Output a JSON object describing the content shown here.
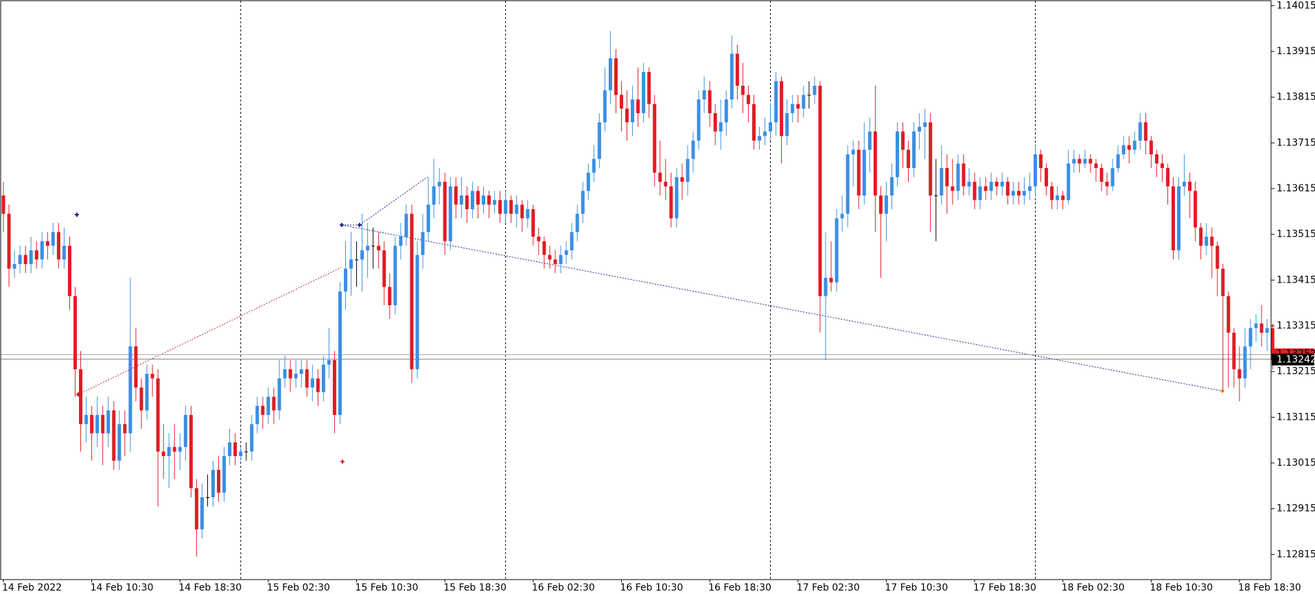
{
  "chart_data": {
    "type": "candlestick",
    "up_color": "#3a8fe3",
    "down_color": "#df1c24",
    "doji_color": "#000000",
    "ylim": [
      1.1276,
      1.14026
    ],
    "yticks": [
      1.14015,
      1.13915,
      1.13815,
      1.13715,
      1.13615,
      1.13515,
      1.13415,
      1.13315,
      1.13215,
      1.13115,
      1.13015,
      1.12915,
      1.12815
    ],
    "x_labels": [
      "14 Feb 2022",
      "14 Feb 10:30",
      "14 Feb 18:30",
      "15 Feb 02:30",
      "15 Feb 10:30",
      "15 Feb 18:30",
      "16 Feb 02:30",
      "16 Feb 10:30",
      "16 Feb 18:30",
      "17 Feb 02:30",
      "17 Feb 10:30",
      "17 Feb 18:30",
      "18 Feb 02:30",
      "18 Feb 10:30",
      "18 Feb 18:30"
    ],
    "bid": 1.13242,
    "ask": 1.13252,
    "candles": [
      [
        1.136,
        1.1363,
        1.1352,
        1.1356
      ],
      [
        1.1356,
        1.1358,
        1.134,
        1.1344
      ],
      [
        1.1344,
        1.1348,
        1.1342,
        1.1345
      ],
      [
        1.1345,
        1.1349,
        1.1343,
        1.1347
      ],
      [
        1.1347,
        1.1349,
        1.1343,
        1.1345
      ],
      [
        1.1345,
        1.1351,
        1.1343,
        1.1348
      ],
      [
        1.1348,
        1.135,
        1.1344,
        1.1346
      ],
      [
        1.1346,
        1.1352,
        1.1344,
        1.135
      ],
      [
        1.135,
        1.1352,
        1.1346,
        1.1349
      ],
      [
        1.1349,
        1.1354,
        1.1347,
        1.1352
      ],
      [
        1.1352,
        1.1354,
        1.1344,
        1.1346
      ],
      [
        1.1346,
        1.1353,
        1.1344,
        1.1349
      ],
      [
        1.1349,
        1.1351,
        1.1335,
        1.1338
      ],
      [
        1.1338,
        1.134,
        1.1316,
        1.1322
      ],
      [
        1.1322,
        1.1326,
        1.1304,
        1.131
      ],
      [
        1.131,
        1.1316,
        1.1306,
        1.1312
      ],
      [
        1.1312,
        1.1314,
        1.1302,
        1.1308
      ],
      [
        1.1308,
        1.1316,
        1.1305,
        1.1312
      ],
      [
        1.1312,
        1.1314,
        1.1301,
        1.1308
      ],
      [
        1.1308,
        1.1316,
        1.1305,
        1.1313
      ],
      [
        1.1313,
        1.1315,
        1.13,
        1.1302
      ],
      [
        1.1302,
        1.1313,
        1.13,
        1.131
      ],
      [
        1.131,
        1.1313,
        1.1303,
        1.1308
      ],
      [
        1.1308,
        1.1342,
        1.1304,
        1.1327
      ],
      [
        1.1327,
        1.1331,
        1.1315,
        1.1318
      ],
      [
        1.1318,
        1.132,
        1.1309,
        1.1313
      ],
      [
        1.1313,
        1.1323,
        1.1311,
        1.1321
      ],
      [
        1.1321,
        1.1323,
        1.1316,
        1.132
      ],
      [
        1.132,
        1.1322,
        1.1292,
        1.1304
      ],
      [
        1.1304,
        1.131,
        1.1298,
        1.1303
      ],
      [
        1.1303,
        1.1308,
        1.1296,
        1.1305
      ],
      [
        1.1305,
        1.131,
        1.1298,
        1.1304
      ],
      [
        1.1304,
        1.1308,
        1.13,
        1.1305
      ],
      [
        1.1305,
        1.1314,
        1.1302,
        1.1312
      ],
      [
        1.1312,
        1.1314,
        1.1294,
        1.1296
      ],
      [
        1.1296,
        1.1298,
        1.1281,
        1.1287
      ],
      [
        1.1287,
        1.1297,
        1.1285,
        1.1294
      ],
      [
        1.1294,
        1.1299,
        1.1292,
        1.1294
      ],
      [
        1.1294,
        1.1302,
        1.1292,
        1.13
      ],
      [
        1.13,
        1.1303,
        1.1293,
        1.1295
      ],
      [
        1.1295,
        1.1305,
        1.1293,
        1.1303
      ],
      [
        1.1303,
        1.1309,
        1.1301,
        1.1306
      ],
      [
        1.1306,
        1.1308,
        1.1301,
        1.1303
      ],
      [
        1.1303,
        1.1305,
        1.1302,
        1.1304
      ],
      [
        1.1304,
        1.1306,
        1.1302,
        1.1304
      ],
      [
        1.1304,
        1.1312,
        1.1302,
        1.131
      ],
      [
        1.131,
        1.1316,
        1.1308,
        1.1314
      ],
      [
        1.1314,
        1.1316,
        1.1309,
        1.1312
      ],
      [
        1.1312,
        1.1318,
        1.131,
        1.1316
      ],
      [
        1.1316,
        1.1318,
        1.131,
        1.1313
      ],
      [
        1.1313,
        1.1324,
        1.1311,
        1.132
      ],
      [
        1.132,
        1.1325,
        1.1318,
        1.1322
      ],
      [
        1.1322,
        1.1324,
        1.1317,
        1.132
      ],
      [
        1.132,
        1.1324,
        1.1318,
        1.1321
      ],
      [
        1.1321,
        1.1324,
        1.1318,
        1.1322
      ],
      [
        1.1322,
        1.1324,
        1.1316,
        1.1318
      ],
      [
        1.1318,
        1.1323,
        1.1315,
        1.132
      ],
      [
        1.132,
        1.1322,
        1.1314,
        1.1317
      ],
      [
        1.1317,
        1.1325,
        1.1315,
        1.1323
      ],
      [
        1.1323,
        1.1331,
        1.132,
        1.1324
      ],
      [
        1.1324,
        1.1326,
        1.1308,
        1.1312
      ],
      [
        1.1312,
        1.1341,
        1.131,
        1.1339
      ],
      [
        1.1339,
        1.135,
        1.1335,
        1.1344
      ],
      [
        1.1344,
        1.1352,
        1.1338,
        1.1346
      ],
      [
        1.1346,
        1.135,
        1.134,
        1.1346
      ],
      [
        1.1346,
        1.1356,
        1.1339,
        1.1348
      ],
      [
        1.1348,
        1.1354,
        1.1342,
        1.1349
      ],
      [
        1.1349,
        1.1353,
        1.1344,
        1.1349
      ],
      [
        1.1349,
        1.1352,
        1.1344,
        1.1348
      ],
      [
        1.1348,
        1.135,
        1.1336,
        1.134
      ],
      [
        1.134,
        1.1343,
        1.1333,
        1.1336
      ],
      [
        1.1336,
        1.1351,
        1.1334,
        1.1349
      ],
      [
        1.1349,
        1.1354,
        1.1346,
        1.1351
      ],
      [
        1.1351,
        1.1358,
        1.1349,
        1.1356
      ],
      [
        1.1356,
        1.1358,
        1.1319,
        1.1322
      ],
      [
        1.1322,
        1.135,
        1.132,
        1.1347
      ],
      [
        1.1347,
        1.1356,
        1.1344,
        1.1352
      ],
      [
        1.1352,
        1.1364,
        1.135,
        1.1358
      ],
      [
        1.1358,
        1.1368,
        1.1355,
        1.1362
      ],
      [
        1.1362,
        1.1366,
        1.1358,
        1.1363
      ],
      [
        1.1363,
        1.1365,
        1.1347,
        1.135
      ],
      [
        1.135,
        1.1364,
        1.1348,
        1.1362
      ],
      [
        1.1362,
        1.1364,
        1.1355,
        1.1358
      ],
      [
        1.1358,
        1.1364,
        1.1355,
        1.136
      ],
      [
        1.136,
        1.1362,
        1.1354,
        1.1357
      ],
      [
        1.1357,
        1.1363,
        1.1355,
        1.1361
      ],
      [
        1.1361,
        1.1362,
        1.1355,
        1.1358
      ],
      [
        1.1358,
        1.1362,
        1.1356,
        1.136
      ],
      [
        1.136,
        1.1361,
        1.1355,
        1.1358
      ],
      [
        1.1358,
        1.1361,
        1.1356,
        1.1359
      ],
      [
        1.1359,
        1.1361,
        1.1354,
        1.1356
      ],
      [
        1.1356,
        1.1361,
        1.1354,
        1.1359
      ],
      [
        1.1359,
        1.136,
        1.1354,
        1.1356
      ],
      [
        1.1356,
        1.136,
        1.1353,
        1.1358
      ],
      [
        1.1358,
        1.1359,
        1.1352,
        1.1355
      ],
      [
        1.1355,
        1.1359,
        1.1353,
        1.1357
      ],
      [
        1.1357,
        1.1358,
        1.1349,
        1.1351
      ],
      [
        1.1351,
        1.1353,
        1.1347,
        1.135
      ],
      [
        1.135,
        1.1351,
        1.1344,
        1.1347
      ],
      [
        1.1347,
        1.1349,
        1.1344,
        1.1346
      ],
      [
        1.1346,
        1.1348,
        1.1343,
        1.1345
      ],
      [
        1.1345,
        1.1349,
        1.1343,
        1.1347
      ],
      [
        1.1347,
        1.135,
        1.1345,
        1.1348
      ],
      [
        1.1348,
        1.1354,
        1.1346,
        1.1352
      ],
      [
        1.1352,
        1.1358,
        1.135,
        1.1356
      ],
      [
        1.1356,
        1.1363,
        1.1354,
        1.1361
      ],
      [
        1.1361,
        1.1367,
        1.1359,
        1.1365
      ],
      [
        1.1365,
        1.1371,
        1.1363,
        1.1368
      ],
      [
        1.1368,
        1.1378,
        1.1366,
        1.1376
      ],
      [
        1.1376,
        1.1388,
        1.1374,
        1.1383
      ],
      [
        1.1383,
        1.1396,
        1.138,
        1.139
      ],
      [
        1.139,
        1.1392,
        1.1378,
        1.1382
      ],
      [
        1.1382,
        1.1385,
        1.1374,
        1.1379
      ],
      [
        1.1379,
        1.1383,
        1.1372,
        1.1376
      ],
      [
        1.1376,
        1.1384,
        1.1373,
        1.1381
      ],
      [
        1.1381,
        1.1388,
        1.1375,
        1.1378
      ],
      [
        1.1378,
        1.1389,
        1.1376,
        1.1387
      ],
      [
        1.1387,
        1.1388,
        1.1377,
        1.138
      ],
      [
        1.138,
        1.1382,
        1.1362,
        1.1365
      ],
      [
        1.1365,
        1.1372,
        1.136,
        1.1363
      ],
      [
        1.1363,
        1.1368,
        1.1359,
        1.1362
      ],
      [
        1.1362,
        1.1365,
        1.1353,
        1.1355
      ],
      [
        1.1355,
        1.1366,
        1.1353,
        1.1364
      ],
      [
        1.1364,
        1.1367,
        1.1359,
        1.1363
      ],
      [
        1.1363,
        1.1371,
        1.136,
        1.1368
      ],
      [
        1.1368,
        1.1374,
        1.1365,
        1.1372
      ],
      [
        1.1372,
        1.1383,
        1.137,
        1.1381
      ],
      [
        1.1381,
        1.1386,
        1.1378,
        1.1383
      ],
      [
        1.1383,
        1.1385,
        1.1375,
        1.1378
      ],
      [
        1.1378,
        1.138,
        1.1371,
        1.1374
      ],
      [
        1.1374,
        1.1381,
        1.137,
        1.1376
      ],
      [
        1.1376,
        1.1383,
        1.1373,
        1.1381
      ],
      [
        1.1381,
        1.1395,
        1.1379,
        1.1391
      ],
      [
        1.1391,
        1.1393,
        1.1381,
        1.1384
      ],
      [
        1.1384,
        1.1389,
        1.1378,
        1.1382
      ],
      [
        1.1382,
        1.1384,
        1.1376,
        1.138
      ],
      [
        1.138,
        1.1382,
        1.137,
        1.1372
      ],
      [
        1.1372,
        1.1375,
        1.137,
        1.1373
      ],
      [
        1.1373,
        1.1377,
        1.1371,
        1.1374
      ],
      [
        1.1374,
        1.138,
        1.1372,
        1.1376
      ],
      [
        1.1376,
        1.1387,
        1.1373,
        1.1385
      ],
      [
        1.1385,
        1.1386,
        1.1367,
        1.1373
      ],
      [
        1.1373,
        1.1381,
        1.1371,
        1.1378
      ],
      [
        1.1378,
        1.1382,
        1.1376,
        1.138
      ],
      [
        1.138,
        1.1382,
        1.1376,
        1.1379
      ],
      [
        1.1379,
        1.1384,
        1.1377,
        1.1382
      ],
      [
        1.1382,
        1.1385,
        1.1379,
        1.1382
      ],
      [
        1.1382,
        1.1386,
        1.138,
        1.1384
      ],
      [
        1.1384,
        1.1385,
        1.133,
        1.1338
      ],
      [
        1.1338,
        1.1352,
        1.1324,
        1.1342
      ],
      [
        1.1342,
        1.135,
        1.1339,
        1.1341
      ],
      [
        1.1341,
        1.1357,
        1.1339,
        1.1355
      ],
      [
        1.1355,
        1.136,
        1.1352,
        1.1356
      ],
      [
        1.1356,
        1.1371,
        1.1353,
        1.1369
      ],
      [
        1.1369,
        1.1372,
        1.1362,
        1.137
      ],
      [
        1.137,
        1.1372,
        1.1357,
        1.136
      ],
      [
        1.136,
        1.1376,
        1.1358,
        1.137
      ],
      [
        1.137,
        1.1377,
        1.1365,
        1.1374
      ],
      [
        1.1374,
        1.1384,
        1.1352,
        1.136
      ],
      [
        1.136,
        1.1362,
        1.1342,
        1.1356
      ],
      [
        1.1356,
        1.1363,
        1.135,
        1.136
      ],
      [
        1.136,
        1.1367,
        1.1357,
        1.1364
      ],
      [
        1.1364,
        1.1376,
        1.1362,
        1.1374
      ],
      [
        1.1374,
        1.1376,
        1.1366,
        1.137
      ],
      [
        1.137,
        1.1372,
        1.1363,
        1.1366
      ],
      [
        1.1366,
        1.1376,
        1.1364,
        1.1374
      ],
      [
        1.1374,
        1.1378,
        1.137,
        1.1375
      ],
      [
        1.1375,
        1.1379,
        1.1368,
        1.1376
      ],
      [
        1.1376,
        1.1378,
        1.1352,
        1.136
      ],
      [
        1.136,
        1.1368,
        1.135,
        1.136
      ],
      [
        1.136,
        1.1371,
        1.1358,
        1.1366
      ],
      [
        1.1366,
        1.1369,
        1.1356,
        1.1362
      ],
      [
        1.1362,
        1.1368,
        1.1358,
        1.1361
      ],
      [
        1.1361,
        1.1369,
        1.1359,
        1.1367
      ],
      [
        1.1367,
        1.1369,
        1.136,
        1.1362
      ],
      [
        1.1362,
        1.1366,
        1.136,
        1.1363
      ],
      [
        1.1363,
        1.1365,
        1.1357,
        1.1359
      ],
      [
        1.1359,
        1.1364,
        1.1357,
        1.1362
      ],
      [
        1.1362,
        1.1364,
        1.1359,
        1.1361
      ],
      [
        1.1361,
        1.1365,
        1.1359,
        1.1363
      ],
      [
        1.1363,
        1.1364,
        1.136,
        1.1362
      ],
      [
        1.1362,
        1.1365,
        1.136,
        1.1363
      ],
      [
        1.1363,
        1.1364,
        1.1358,
        1.136
      ],
      [
        1.136,
        1.1363,
        1.1358,
        1.1361
      ],
      [
        1.1361,
        1.1363,
        1.1358,
        1.136
      ],
      [
        1.136,
        1.1364,
        1.1358,
        1.1361
      ],
      [
        1.1361,
        1.1365,
        1.1359,
        1.1362
      ],
      [
        1.1362,
        1.1371,
        1.136,
        1.1369
      ],
      [
        1.1369,
        1.137,
        1.1363,
        1.1366
      ],
      [
        1.1366,
        1.1367,
        1.136,
        1.1362
      ],
      [
        1.1362,
        1.1363,
        1.1357,
        1.1359
      ],
      [
        1.1359,
        1.1362,
        1.1357,
        1.136
      ],
      [
        1.136,
        1.1361,
        1.1357,
        1.1359
      ],
      [
        1.1359,
        1.137,
        1.1358,
        1.1367
      ],
      [
        1.1367,
        1.137,
        1.1365,
        1.1368
      ],
      [
        1.1368,
        1.1369,
        1.1365,
        1.1367
      ],
      [
        1.1367,
        1.137,
        1.1366,
        1.1368
      ],
      [
        1.1368,
        1.1369,
        1.1365,
        1.1367
      ],
      [
        1.1367,
        1.1368,
        1.1363,
        1.1366
      ],
      [
        1.1366,
        1.1367,
        1.1361,
        1.1363
      ],
      [
        1.1363,
        1.1365,
        1.136,
        1.1362
      ],
      [
        1.1362,
        1.1368,
        1.1361,
        1.1366
      ],
      [
        1.1366,
        1.1371,
        1.1365,
        1.1369
      ],
      [
        1.1369,
        1.1373,
        1.1368,
        1.1371
      ],
      [
        1.1371,
        1.1373,
        1.1367,
        1.137
      ],
      [
        1.137,
        1.1374,
        1.1369,
        1.1372
      ],
      [
        1.1372,
        1.1378,
        1.137,
        1.1376
      ],
      [
        1.1376,
        1.1378,
        1.1369,
        1.1372
      ],
      [
        1.1372,
        1.1373,
        1.1366,
        1.1369
      ],
      [
        1.1369,
        1.137,
        1.1364,
        1.1367
      ],
      [
        1.1367,
        1.1369,
        1.1363,
        1.1366
      ],
      [
        1.1366,
        1.1367,
        1.1358,
        1.1362
      ],
      [
        1.1362,
        1.1364,
        1.1346,
        1.1348
      ],
      [
        1.1348,
        1.1364,
        1.1346,
        1.1362
      ],
      [
        1.1362,
        1.1369,
        1.136,
        1.1363
      ],
      [
        1.1363,
        1.1365,
        1.1355,
        1.1361
      ],
      [
        1.1361,
        1.1363,
        1.135,
        1.1353
      ],
      [
        1.1353,
        1.1354,
        1.1346,
        1.1349
      ],
      [
        1.1349,
        1.1354,
        1.1347,
        1.1351
      ],
      [
        1.1351,
        1.1353,
        1.1342,
        1.1349
      ],
      [
        1.1349,
        1.135,
        1.1338,
        1.1344
      ],
      [
        1.1344,
        1.1345,
        1.1317,
        1.1338
      ],
      [
        1.1338,
        1.1339,
        1.1318,
        1.133
      ],
      [
        1.133,
        1.1331,
        1.1318,
        1.1322
      ],
      [
        1.1322,
        1.1327,
        1.1315,
        1.132
      ],
      [
        1.132,
        1.1331,
        1.1318,
        1.1327
      ],
      [
        1.1327,
        1.1333,
        1.1322,
        1.1331
      ],
      [
        1.1331,
        1.1334,
        1.1328,
        1.1332
      ],
      [
        1.1332,
        1.1336,
        1.1327,
        1.133
      ],
      [
        1.133,
        1.1333,
        1.1326,
        1.1331
      ],
      [
        1.1331,
        1.1332,
        1.1322,
        1.1324
      ]
    ]
  }
}
